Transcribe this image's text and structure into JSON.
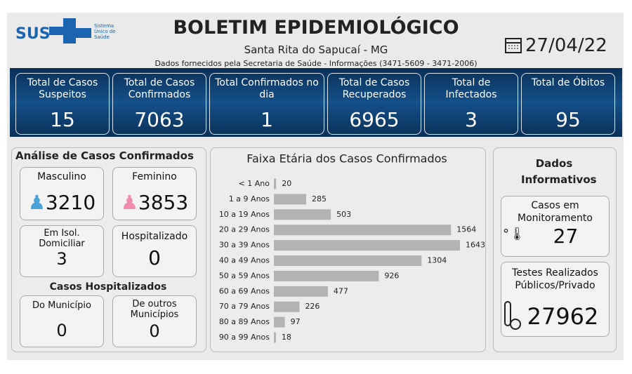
{
  "header": {
    "logo": "SUS",
    "logo_sub": "Sistema Único de Saúde",
    "title": "BOLETIM EPIDEMIOLÓGICO",
    "subtitle": "Santa Rita do Sapucaí - MG",
    "source": "Dados fornecidos pela Secretaria de Saúde - Informações (3471-5609 - 3471-2006)",
    "date": "27/04/22"
  },
  "cards": [
    {
      "label": "Total de Casos Suspeitos",
      "value": "15"
    },
    {
      "label": "Total de Casos Confirmados",
      "value": "7063"
    },
    {
      "label": "Total Confirmados no dia",
      "value": "1"
    },
    {
      "label": "Total de Casos Recuperados",
      "value": "6965"
    },
    {
      "label": "Total de Infectados",
      "value": "3"
    },
    {
      "label": "Total de Óbitos",
      "value": "95"
    }
  ],
  "analysis": {
    "title": "Análise de Casos Confirmados",
    "male": {
      "label": "Masculino",
      "value": "3210"
    },
    "female": {
      "label": "Feminino",
      "value": "3853"
    },
    "isolation": {
      "label": "Em Isol. Domiciliar",
      "value": "3"
    },
    "hospitalized": {
      "label": "Hospitalizado",
      "value": "0"
    },
    "hosp_title": "Casos Hospitalizados",
    "municipality": {
      "label": "Do Município",
      "value": "0"
    },
    "other": {
      "label": "De outros Municípios",
      "value": "0"
    }
  },
  "chart_data": {
    "type": "bar",
    "orientation": "horizontal",
    "title": "Faixa Etária dos Casos Confirmados",
    "color": "#b3b3b3",
    "categories": [
      "< 1 Ano",
      "1 a 9 Anos",
      "10 a 19 Anos",
      "20 a 29 Anos",
      "30 a 39 Anos",
      "40 a 49 Anos",
      "50 a 59 Anos",
      "60 a 69 Anos",
      "70 a 79 Anos",
      "80 a 89 Anos",
      "90 a 99 Anos"
    ],
    "values": [
      20,
      285,
      503,
      1564,
      1643,
      1304,
      926,
      477,
      226,
      97,
      18
    ]
  },
  "info": {
    "title": "Dados Informativos",
    "monitoring": {
      "label": "Casos em Monitoramento",
      "value": "27"
    },
    "tests": {
      "label": "Testes Realizados Públicos/Privado",
      "value": "27962"
    }
  }
}
